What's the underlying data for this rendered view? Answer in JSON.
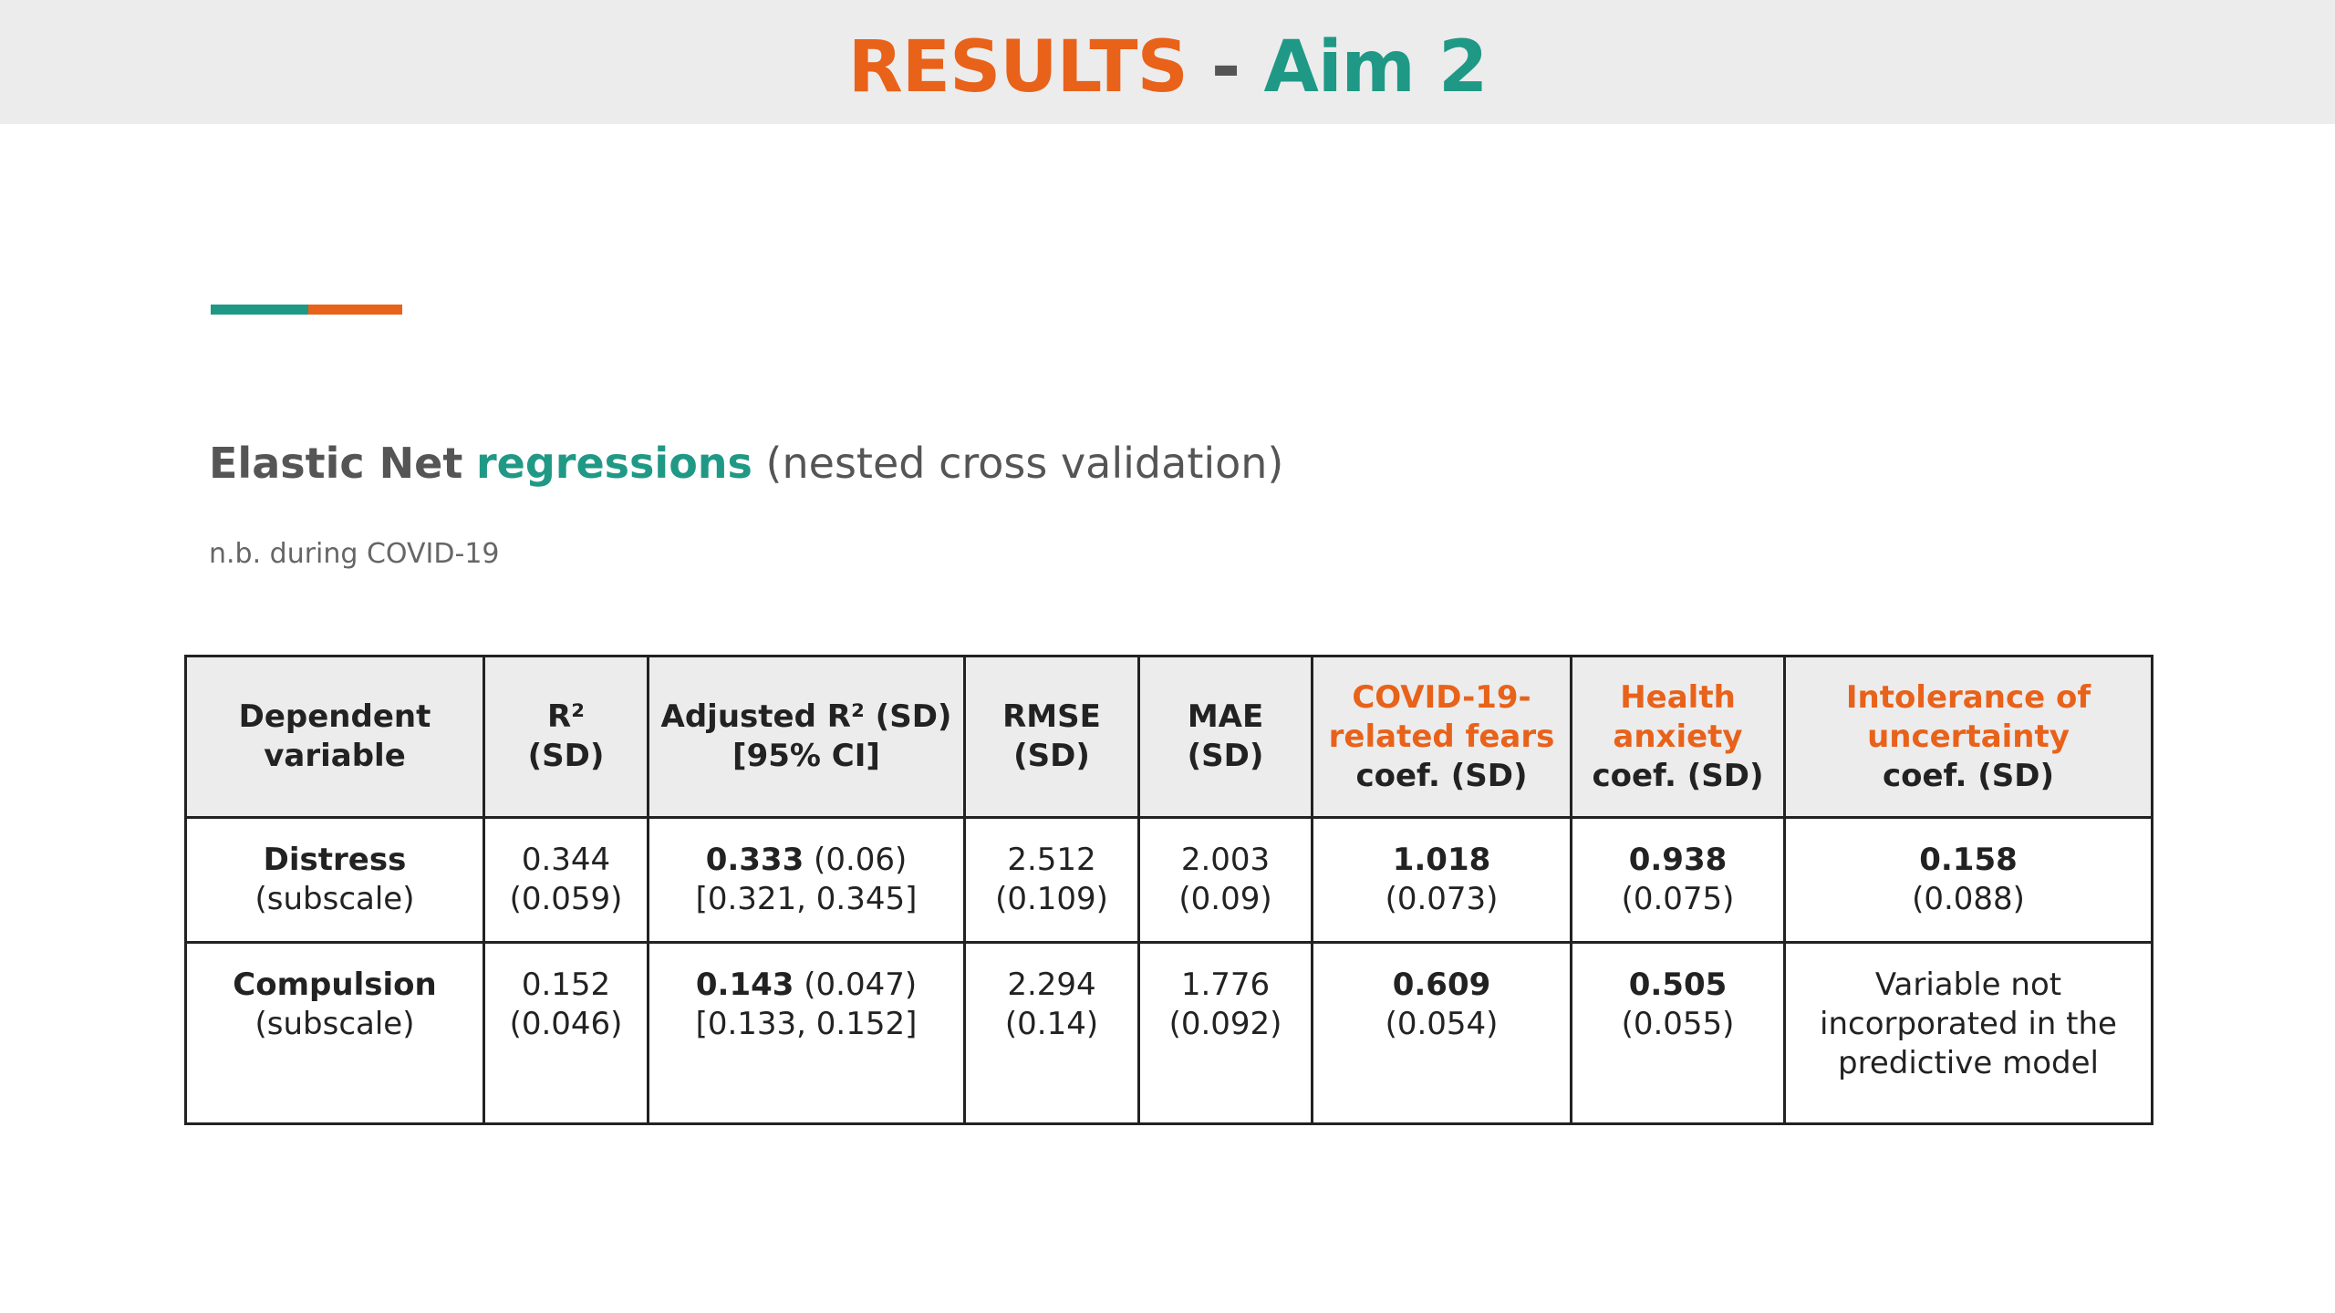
{
  "header": {
    "title_part1": "RESULTS",
    "title_sep": " - ",
    "title_part2": "Aim 2",
    "colors": {
      "orange": "#e8621a",
      "teal": "#1f9985",
      "header_bg": "#ececed"
    }
  },
  "subtitle": {
    "part1": "Elastic Net",
    "part2": "regressions",
    "part3": "(nested cross validation)"
  },
  "note": "n.b. during COVID-19",
  "table": {
    "headers": [
      {
        "lines": [
          "Dependent",
          "variable"
        ]
      },
      {
        "lines": [
          "R²",
          "(SD)"
        ]
      },
      {
        "lines": [
          "Adjusted R² (SD)",
          "[95% CI]"
        ]
      },
      {
        "lines": [
          "RMSE",
          "(SD)"
        ]
      },
      {
        "lines": [
          "MAE",
          "(SD)"
        ]
      },
      {
        "highlight": [
          "COVID-19-",
          "related fears"
        ],
        "lines": [
          "coef. (SD)"
        ]
      },
      {
        "highlight": [
          "Health",
          "anxiety"
        ],
        "lines": [
          "coef. (SD)"
        ]
      },
      {
        "highlight": [
          "Intolerance of",
          "uncertainty"
        ],
        "lines": [
          "coef. (SD)"
        ]
      }
    ],
    "rows": [
      {
        "dv_name": "Distress",
        "dv_sub": "(subscale)",
        "r2": "0.344",
        "r2_sd": "(0.059)",
        "adj_r2": "0.333",
        "adj_r2_sd": " (0.06)",
        "adj_ci": "[0.321, 0.345]",
        "rmse": "2.512",
        "rmse_sd": "(0.109)",
        "mae": "2.003",
        "mae_sd": "(0.09)",
        "covid_coef": "1.018",
        "covid_sd": "(0.073)",
        "health_coef": "0.938",
        "health_sd": "(0.075)",
        "iu_coef": "0.158",
        "iu_sd": "(0.088)"
      },
      {
        "dv_name": "Compulsion",
        "dv_sub": "(subscale)",
        "r2": "0.152",
        "r2_sd": "(0.046)",
        "adj_r2": "0.143",
        "adj_r2_sd": " (0.047)",
        "adj_ci": "[0.133, 0.152]",
        "rmse": "2.294",
        "rmse_sd": "(0.14)",
        "mae": "1.776",
        "mae_sd": "(0.092)",
        "covid_coef": "0.609",
        "covid_sd": "(0.054)",
        "health_coef": "0.505",
        "health_sd": "(0.055)",
        "iu_note_lines": [
          "Variable not",
          "incorporated in the",
          "predictive model"
        ]
      }
    ]
  }
}
